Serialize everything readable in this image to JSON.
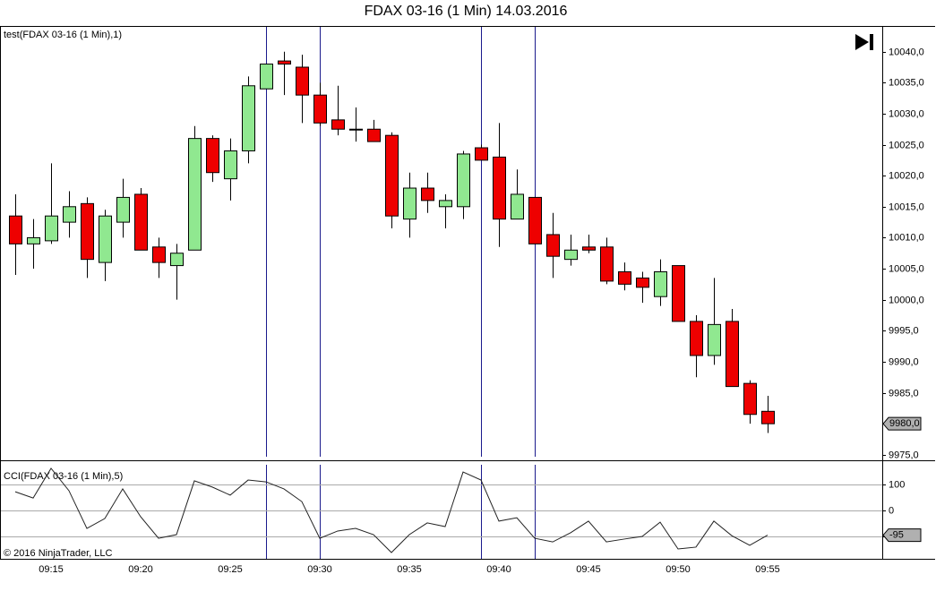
{
  "chart_data": [
    {
      "type": "candlestick",
      "title": "FDAX 03-16 (1 Min)  14.03.2016",
      "label": "test(FDAX 03-16 (1 Min),1)",
      "categories": [
        null,
        null,
        "09:15",
        null,
        null,
        null,
        null,
        "09:20",
        null,
        null,
        null,
        null,
        "09:25",
        null,
        null,
        null,
        null,
        "09:30",
        null,
        null,
        null,
        null,
        "09:35",
        null,
        null,
        null,
        null,
        "09:40",
        null,
        null,
        null,
        null,
        "09:45",
        null,
        null,
        null,
        null,
        "09:50",
        null,
        null,
        null,
        null,
        "09:55"
      ],
      "open": [
        10013.5,
        10009,
        10009.5,
        10012.5,
        10015.5,
        10006,
        10012.5,
        10017,
        10008.5,
        10005.5,
        10008,
        10026,
        10019.5,
        10024,
        10034,
        10038.5,
        10037.5,
        10033,
        10029,
        10027.5,
        10027.5,
        10026.5,
        10013,
        10018,
        10015,
        10015,
        10024.5,
        10023,
        10013,
        10016.5,
        10010.5,
        10006.5,
        10008.5,
        10008.5,
        10004.5,
        10003.5,
        10000.5,
        10005.5,
        9996.5,
        9991,
        9996.5,
        9986.5,
        9982
      ],
      "high": [
        10017,
        10013,
        10022,
        10017.5,
        10016.5,
        10014.5,
        10019.5,
        10018,
        10010,
        10009,
        10028,
        10026.5,
        10026,
        10036,
        10038,
        10040,
        10039.5,
        10035,
        10034.5,
        10031,
        10029,
        10027,
        10020.5,
        10020.5,
        10017,
        10024,
        10025,
        10028.5,
        10021,
        10016.5,
        10014,
        10010.5,
        10010.5,
        10010,
        10006,
        10004.5,
        10006.5,
        10005.5,
        9997.5,
        10003.5,
        9998.5,
        9987,
        9984.5
      ],
      "low": [
        10004,
        10005,
        10009,
        10010,
        10003.5,
        10003,
        10010,
        10008,
        10003.5,
        10000,
        10008,
        10019,
        10016,
        10022,
        10034,
        10033,
        10028.5,
        10028,
        10026.5,
        10025.5,
        10025.5,
        10011.5,
        10010,
        10014,
        10011.5,
        10013,
        10022.5,
        10008.5,
        10013,
        10009,
        10003.5,
        10005.5,
        10007.5,
        10002.5,
        10001.5,
        9999.5,
        9999,
        9996.5,
        9987.5,
        9989.5,
        9986,
        9980,
        9978.5
      ],
      "close": [
        10009,
        10010,
        10013.5,
        10015,
        10006.5,
        10013.5,
        10016.5,
        10008,
        10006,
        10007.5,
        10026,
        10020.5,
        10024,
        10034.5,
        10038,
        10038,
        10033,
        10028.5,
        10027.5,
        10027.5,
        10025.5,
        10013.5,
        10018,
        10016,
        10016,
        10023.5,
        10022.5,
        10013,
        10017,
        10009,
        10007,
        10008,
        10008,
        10003,
        10002.5,
        10002,
        10004.5,
        9996.5,
        9991,
        9996,
        9986,
        9981.5,
        9980
      ],
      "up_color": "#90e890",
      "down_color": "#ee0000",
      "last_label": "9980,0",
      "ylim": [
        9974.1,
        10044.0
      ],
      "yticks": [
        {
          "value": 9975,
          "label": "9975,0"
        },
        {
          "value": 9980,
          "label": "9980,0"
        },
        {
          "value": 9985,
          "label": "9985,0"
        },
        {
          "value": 9990,
          "label": "9990,0"
        },
        {
          "value": 9995,
          "label": "9995,0"
        },
        {
          "value": 10000,
          "label": "10000,0"
        },
        {
          "value": 10005,
          "label": "10005,0"
        },
        {
          "value": 10010,
          "label": "10010,0"
        },
        {
          "value": 10015,
          "label": "10015,0"
        },
        {
          "value": 10020,
          "label": "10020,0"
        },
        {
          "value": 10025,
          "label": "10025,0"
        },
        {
          "value": 10030,
          "label": "10030,0"
        },
        {
          "value": 10035,
          "label": "10035,0"
        },
        {
          "value": 10040,
          "label": "10040,0"
        }
      ]
    },
    {
      "type": "line",
      "label": "CCI(FDAX 03-16 (1 Min),5)",
      "footer": "© 2016 NinjaTrader, LLC",
      "values": [
        72,
        48,
        162,
        76,
        -69,
        -31,
        83,
        -24,
        -107,
        -93,
        114,
        90,
        59,
        117,
        110,
        83,
        34,
        -107,
        -79,
        -69,
        -93,
        -162,
        -93,
        -48,
        -62,
        148,
        117,
        -41,
        -28,
        -107,
        -121,
        -86,
        -41,
        -121,
        -110,
        -100,
        -45,
        -148,
        -141,
        -41,
        -97,
        -134,
        -95
      ],
      "color": "#222222",
      "last_label": "-95",
      "ylim": [
        -186,
        193
      ],
      "yticks": [
        100,
        0,
        -100
      ],
      "grid": true
    }
  ]
}
